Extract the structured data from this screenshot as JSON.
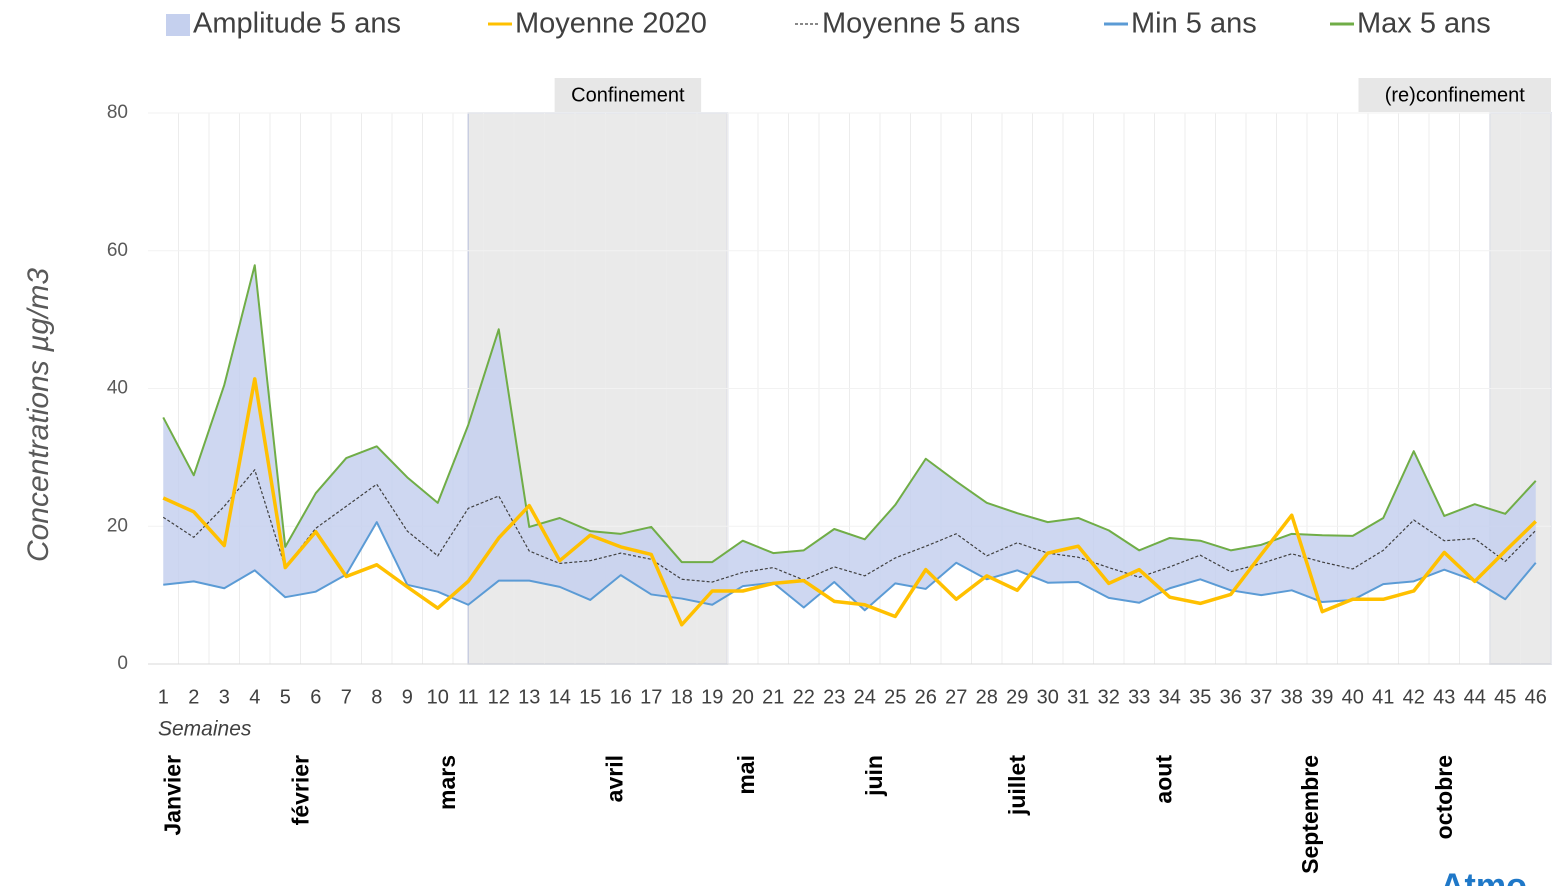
{
  "chart_data": {
    "type": "line",
    "y_label": "Concentrations µg/m3",
    "x_label": "Semaines",
    "x": [
      1,
      2,
      3,
      4,
      5,
      6,
      7,
      8,
      9,
      10,
      11,
      12,
      13,
      14,
      15,
      16,
      17,
      18,
      19,
      20,
      21,
      22,
      23,
      24,
      25,
      26,
      27,
      28,
      29,
      30,
      31,
      32,
      33,
      34,
      35,
      36,
      37,
      38,
      39,
      40,
      41,
      42,
      43,
      44,
      45,
      46
    ],
    "xlim": [
      0.5,
      46.5
    ],
    "ylim": [
      0,
      80
    ],
    "yticks": [
      0,
      20,
      40,
      60,
      80
    ],
    "grid": true,
    "series": [
      {
        "name": "Amplitude 5 ans",
        "color": "#c5d0ee"
      },
      {
        "name": "Moyenne 2020",
        "color": "#ffc000",
        "values": [
          24.1,
          22.1,
          17.2,
          41.4,
          14,
          19.2,
          12.7,
          14.4,
          11.2,
          8.1,
          12,
          18.3,
          23,
          15,
          18.7,
          17,
          15.9,
          5.7,
          10.6,
          10.6,
          11.7,
          12.1,
          9.1,
          8.6,
          6.9,
          13.7,
          9.4,
          12.8,
          10.7,
          16.1,
          17.1,
          11.7,
          13.7,
          9.7,
          8.8,
          10.1,
          15.9,
          21.6,
          7.6,
          9.4,
          9.4,
          10.6,
          16.2,
          12,
          16.4,
          20.7
        ]
      },
      {
        "name": "Moyenne 5 ans",
        "color": "#404040",
        "dashed": true,
        "values": [
          21.3,
          18.4,
          22.9,
          28.2,
          14,
          19.7,
          22.9,
          26.1,
          19.3,
          15.7,
          22.6,
          24.4,
          16.4,
          14.6,
          15,
          16.1,
          15.2,
          12.3,
          11.9,
          13.3,
          14,
          12.2,
          14.1,
          12.8,
          15.4,
          17.1,
          18.9,
          15.7,
          17.6,
          16.1,
          15.5,
          14,
          12.6,
          14.1,
          15.8,
          13.4,
          14.6,
          16,
          14.8,
          13.8,
          16.5,
          20.9,
          17.9,
          18.2,
          14.9,
          19.4
        ]
      },
      {
        "name": "Min 5 ans",
        "color": "#5b9bd5",
        "values": [
          11.5,
          12,
          11,
          13.6,
          9.7,
          10.5,
          13,
          20.6,
          11.5,
          10.5,
          8.6,
          12.1,
          12.1,
          11.2,
          9.3,
          12.9,
          10.1,
          9.5,
          8.6,
          11.3,
          11.8,
          8.2,
          11.9,
          7.8,
          11.7,
          10.9,
          14.7,
          12.3,
          13.6,
          11.8,
          11.9,
          9.6,
          8.9,
          11,
          12.3,
          10.7,
          10,
          10.7,
          9,
          9.3,
          11.6,
          12,
          13.7,
          12.1,
          9.4,
          14.7
        ]
      },
      {
        "name": "Max 5 ans",
        "color": "#70ad47",
        "values": [
          35.8,
          27.4,
          40.5,
          57.9,
          17,
          24.8,
          29.9,
          31.6,
          27.1,
          23.4,
          34.7,
          48.6,
          19.9,
          21.2,
          19.3,
          18.9,
          19.9,
          14.8,
          14.8,
          17.9,
          16.1,
          16.5,
          19.6,
          18.1,
          23.1,
          29.8,
          26.5,
          23.4,
          21.9,
          20.6,
          21.2,
          19.4,
          16.5,
          18.3,
          17.9,
          16.5,
          17.3,
          18.9,
          18.7,
          18.6,
          21.2,
          30.9,
          21.5,
          23.2,
          21.8,
          26.6
        ]
      }
    ],
    "shaded_periods": [
      {
        "label": "Confinement",
        "start": 11,
        "end": 19.5
      },
      {
        "label": "(re)confinement",
        "start": 44.5,
        "end": 46.5
      }
    ],
    "months": {
      "labels": [
        "Janvier",
        "février",
        "mars",
        "avril",
        "mai",
        "juin",
        "juillet",
        "aout",
        "Septembre",
        "octobre"
      ],
      "x": [
        1.1,
        5.3,
        10.1,
        15.6,
        19.9,
        24.1,
        28.8,
        33.6,
        38.4,
        42.8
      ]
    },
    "logo": "Atmo"
  }
}
